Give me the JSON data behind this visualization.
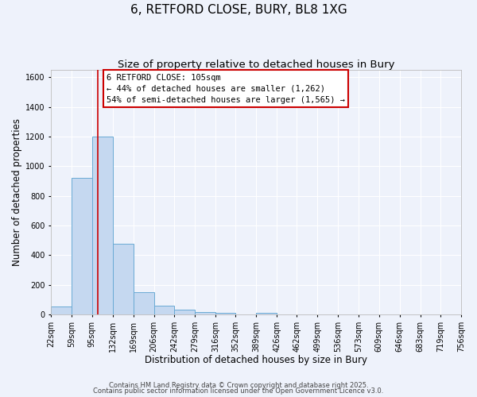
{
  "title": "6, RETFORD CLOSE, BURY, BL8 1XG",
  "subtitle": "Size of property relative to detached houses in Bury",
  "xlabel": "Distribution of detached houses by size in Bury",
  "ylabel": "Number of detached properties",
  "bar_values": [
    55,
    920,
    1200,
    475,
    150,
    60,
    30,
    15,
    10,
    0,
    10,
    0,
    0,
    0,
    0,
    0,
    0,
    0,
    0,
    0
  ],
  "bin_edges": [
    22,
    59,
    95,
    132,
    169,
    206,
    242,
    279,
    316,
    352,
    389,
    426,
    462,
    499,
    536,
    573,
    609,
    646,
    683,
    719,
    756
  ],
  "tick_labels": [
    "22sqm",
    "59sqm",
    "95sqm",
    "132sqm",
    "169sqm",
    "206sqm",
    "242sqm",
    "279sqm",
    "316sqm",
    "352sqm",
    "389sqm",
    "426sqm",
    "462sqm",
    "499sqm",
    "536sqm",
    "573sqm",
    "609sqm",
    "646sqm",
    "683sqm",
    "719sqm",
    "756sqm"
  ],
  "bar_color": "#c5d8f0",
  "bar_edge_color": "#6aaad4",
  "property_line_x": 105,
  "property_line_color": "#cc0000",
  "annotation_lines": [
    "6 RETFORD CLOSE: 105sqm",
    "← 44% of detached houses are smaller (1,262)",
    "54% of semi-detached houses are larger (1,565) →"
  ],
  "ylim": [
    0,
    1650
  ],
  "yticks": [
    0,
    200,
    400,
    600,
    800,
    1000,
    1200,
    1400,
    1600
  ],
  "footer_line1": "Contains HM Land Registry data © Crown copyright and database right 2025.",
  "footer_line2": "Contains public sector information licensed under the Open Government Licence v3.0.",
  "bg_color": "#eef2fb",
  "grid_color": "#ffffff",
  "title_fontsize": 11,
  "subtitle_fontsize": 9.5,
  "axis_label_fontsize": 8.5,
  "tick_fontsize": 7,
  "footer_fontsize": 6,
  "annot_fontsize": 7.5
}
